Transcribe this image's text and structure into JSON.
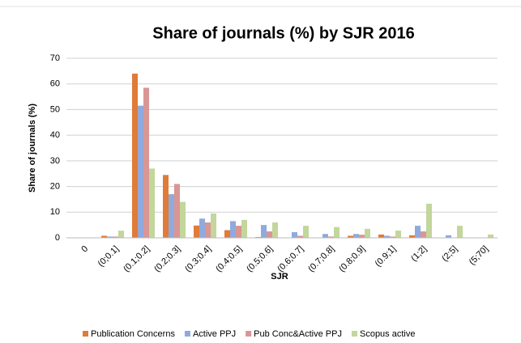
{
  "chart_data": {
    "type": "bar",
    "title": "Share of journals (%) by SJR 2016",
    "x_label": "SJR",
    "y_label": "Share of journals (%)",
    "categories": [
      "0",
      "(0;0.1]",
      "(0.1;0.2]",
      "(0.2;0.3]",
      "(0.3;0.4]",
      "(0.4;0.5]",
      "(0.5;0.6]",
      "(0.6;0.7]",
      "(0.7;0.8]",
      "(0.8;0.9]",
      "(0.9;1]",
      "(1;2]",
      "(2;5]",
      "(5;70]"
    ],
    "series": [
      {
        "name": "Publication Concerns",
        "color": "#e07b39",
        "values": [
          0,
          0.8,
          64,
          24.5,
          4.8,
          3,
          0.3,
          0,
          0,
          0.8,
          1.3,
          1,
          0,
          0
        ]
      },
      {
        "name": "Active PPJ",
        "color": "#8faadc",
        "values": [
          0,
          0.5,
          51.5,
          17,
          7.5,
          6.5,
          5,
          2.2,
          1.5,
          1.5,
          0.8,
          4.7,
          1,
          0
        ]
      },
      {
        "name": "Pub Conc&Active PPJ",
        "color": "#d99694",
        "values": [
          0,
          0.5,
          58.5,
          21,
          6,
          4.7,
          2.5,
          0.8,
          0.5,
          1.2,
          0.5,
          2.5,
          0,
          0
        ]
      },
      {
        "name": "Scopus active",
        "color": "#c3d69b",
        "values": [
          0,
          2.8,
          27,
          14,
          9.5,
          7,
          6,
          4.7,
          4.2,
          3.5,
          2.8,
          13.3,
          4.7,
          1.3
        ]
      }
    ],
    "ylim": [
      0,
      70
    ],
    "yticks": [
      0,
      10,
      20,
      30,
      40,
      50,
      60,
      70
    ],
    "grid": true,
    "legend": "bottom"
  }
}
